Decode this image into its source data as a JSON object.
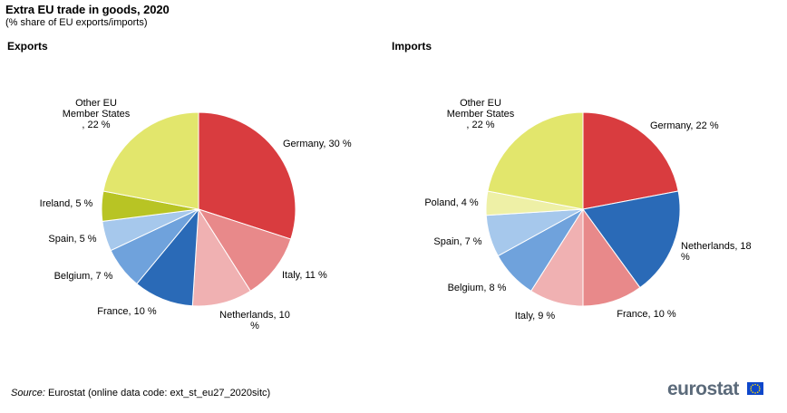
{
  "title": "Extra EU trade in goods, 2020",
  "subtitle": "(% share of EU exports/imports)",
  "source": {
    "label": "Source:",
    "text": "Eurostat (online data code: ext_st_eu27_2020sitc)"
  },
  "logo": {
    "text": "eurostat",
    "icon": "eu-flag-icon"
  },
  "chart_data": [
    {
      "type": "pie",
      "title": "Exports",
      "slices": [
        {
          "label": "Germany, 30 %",
          "value": 30,
          "color": "#d93c3f"
        },
        {
          "label": "Italy, 11 %",
          "value": 11,
          "color": "#e8898a"
        },
        {
          "label": "Netherlands, 10 %",
          "value": 10,
          "color": "#f0b1b2"
        },
        {
          "label": "France, 10 %",
          "value": 10,
          "color": "#2a6ab7"
        },
        {
          "label": "Belgium, 7 %",
          "value": 7,
          "color": "#6fa2dc"
        },
        {
          "label": "Spain, 5 %",
          "value": 5,
          "color": "#a6c8ec"
        },
        {
          "label": "Ireland, 5 %",
          "value": 5,
          "color": "#b8c424"
        },
        {
          "label": "Other EU Member States, 22 %",
          "value": 22,
          "color": "#e2e66c"
        }
      ]
    },
    {
      "type": "pie",
      "title": "Imports",
      "slices": [
        {
          "label": "Germany, 22 %",
          "value": 22,
          "color": "#d93c3f"
        },
        {
          "label": "Netherlands, 18 %",
          "value": 18,
          "color": "#2a6ab7"
        },
        {
          "label": "France, 10 %",
          "value": 10,
          "color": "#e8898a"
        },
        {
          "label": "Italy, 9 %",
          "value": 9,
          "color": "#f0b1b2"
        },
        {
          "label": "Belgium, 8 %",
          "value": 8,
          "color": "#6fa2dc"
        },
        {
          "label": "Spain, 7 %",
          "value": 7,
          "color": "#a6c8ec"
        },
        {
          "label": "Poland, 4 %",
          "value": 4,
          "color": "#eef0a6"
        },
        {
          "label": "Other EU Member States, 22 %",
          "value": 22,
          "color": "#e2e66c"
        }
      ]
    }
  ]
}
